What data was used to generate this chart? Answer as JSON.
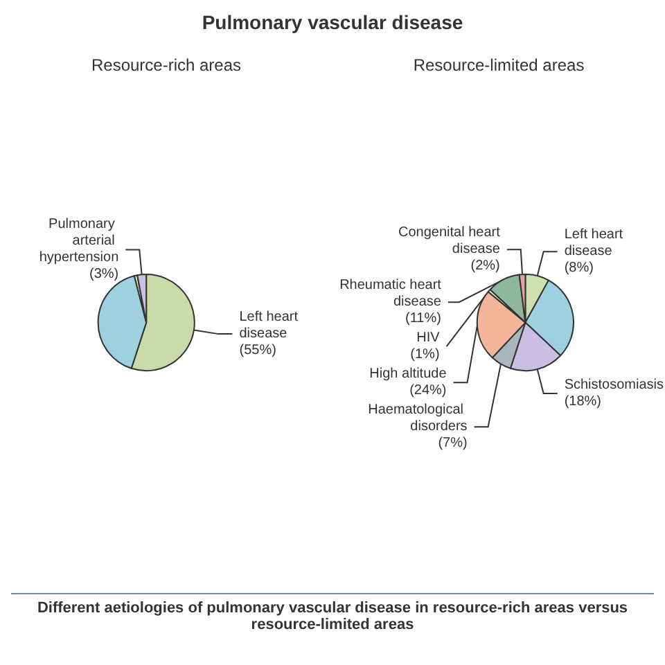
{
  "chart_data": [
    {
      "type": "pie",
      "title": "Pulmonary vascular disease",
      "subtitle": "Resource-rich areas",
      "categories": [
        "Left heart disease",
        null,
        null,
        "Pulmonary arterial hypertension"
      ],
      "values": [
        55,
        41,
        1,
        3
      ],
      "colors": [
        "#c9dba8",
        "#9fd0e0",
        "#f1dcc0",
        "#c9bfe0"
      ],
      "value_labels": [
        "(55%)",
        null,
        null,
        "(3%)"
      ],
      "annotations": [
        "Different aetiologies of pulmonary vascular disease in resource-rich areas versus resource-limited areas"
      ]
    },
    {
      "type": "pie",
      "subtitle": "Resource-limited areas",
      "categories": [
        "Left heart disease",
        null,
        "Schistosomiasis",
        "Haematological disorders",
        "High altitude",
        "HIV",
        "Rheumatic heart disease",
        "Congenital heart disease"
      ],
      "values": [
        8,
        29,
        18,
        7,
        24,
        1,
        11,
        2
      ],
      "colors": [
        "#cfe0b0",
        "#9fd0e0",
        "#cbbfe3",
        "#a9b6bc",
        "#f4b49a",
        "#e8e0c8",
        "#8fb79e",
        "#e6a2a6"
      ],
      "value_labels": [
        "(8%)",
        null,
        "(18%)",
        "(7%)",
        "(24%)",
        "(1%)",
        "(11%)",
        "(2%)"
      ]
    }
  ]
}
